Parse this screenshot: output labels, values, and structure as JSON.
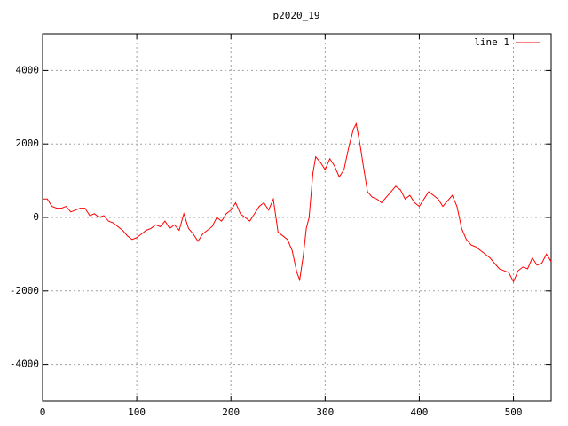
{
  "chart_data": {
    "type": "line",
    "title": "p2020_19",
    "x": [
      0,
      5,
      10,
      15,
      20,
      25,
      30,
      35,
      40,
      45,
      50,
      55,
      60,
      65,
      70,
      75,
      80,
      85,
      90,
      95,
      100,
      105,
      110,
      115,
      120,
      125,
      130,
      135,
      140,
      145,
      150,
      155,
      160,
      165,
      170,
      175,
      180,
      185,
      190,
      195,
      200,
      205,
      210,
      215,
      220,
      225,
      230,
      235,
      240,
      245,
      250,
      255,
      260,
      265,
      270,
      273,
      277,
      280,
      283,
      287,
      290,
      295,
      300,
      305,
      310,
      315,
      320,
      325,
      330,
      333,
      337,
      340,
      345,
      350,
      355,
      360,
      365,
      370,
      375,
      380,
      385,
      390,
      395,
      400,
      405,
      410,
      415,
      420,
      425,
      430,
      435,
      440,
      445,
      450,
      455,
      460,
      465,
      470,
      475,
      480,
      485,
      490,
      495,
      500,
      505,
      510,
      515,
      520,
      525,
      530,
      535,
      540
    ],
    "series": [
      {
        "name": "line 1",
        "color": "#ff0000",
        "values": [
          500,
          500,
          300,
          250,
          250,
          300,
          150,
          200,
          250,
          250,
          50,
          100,
          0,
          50,
          -100,
          -150,
          -250,
          -350,
          -500,
          -600,
          -550,
          -450,
          -350,
          -300,
          -200,
          -250,
          -100,
          -300,
          -200,
          -350,
          100,
          -300,
          -450,
          -650,
          -450,
          -350,
          -250,
          0,
          -100,
          100,
          200,
          400,
          100,
          0,
          -100,
          100,
          300,
          400,
          200,
          500,
          -400,
          -500,
          -600,
          -900,
          -1500,
          -1700,
          -1000,
          -300,
          0,
          1200,
          1650,
          1500,
          1300,
          1600,
          1400,
          1100,
          1300,
          1900,
          2400,
          2550,
          2000,
          1500,
          700,
          550,
          500,
          400,
          550,
          700,
          850,
          750,
          500,
          600,
          400,
          300,
          500,
          700,
          600,
          500,
          300,
          450,
          600,
          300,
          -300,
          -600,
          -750,
          -800,
          -900,
          -1000,
          -1100,
          -1250,
          -1400,
          -1450,
          -1500,
          -1750,
          -1450,
          -1350,
          -1400,
          -1100,
          -1300,
          -1250,
          -1000,
          -1200
        ]
      }
    ],
    "xlim": [
      0,
      540
    ],
    "ylim": [
      -5000,
      5000
    ],
    "xticks": [
      0,
      100,
      200,
      300,
      400,
      500
    ],
    "yticks": [
      -4000,
      -2000,
      0,
      2000,
      4000
    ],
    "grid": true,
    "legend": "top-right"
  }
}
